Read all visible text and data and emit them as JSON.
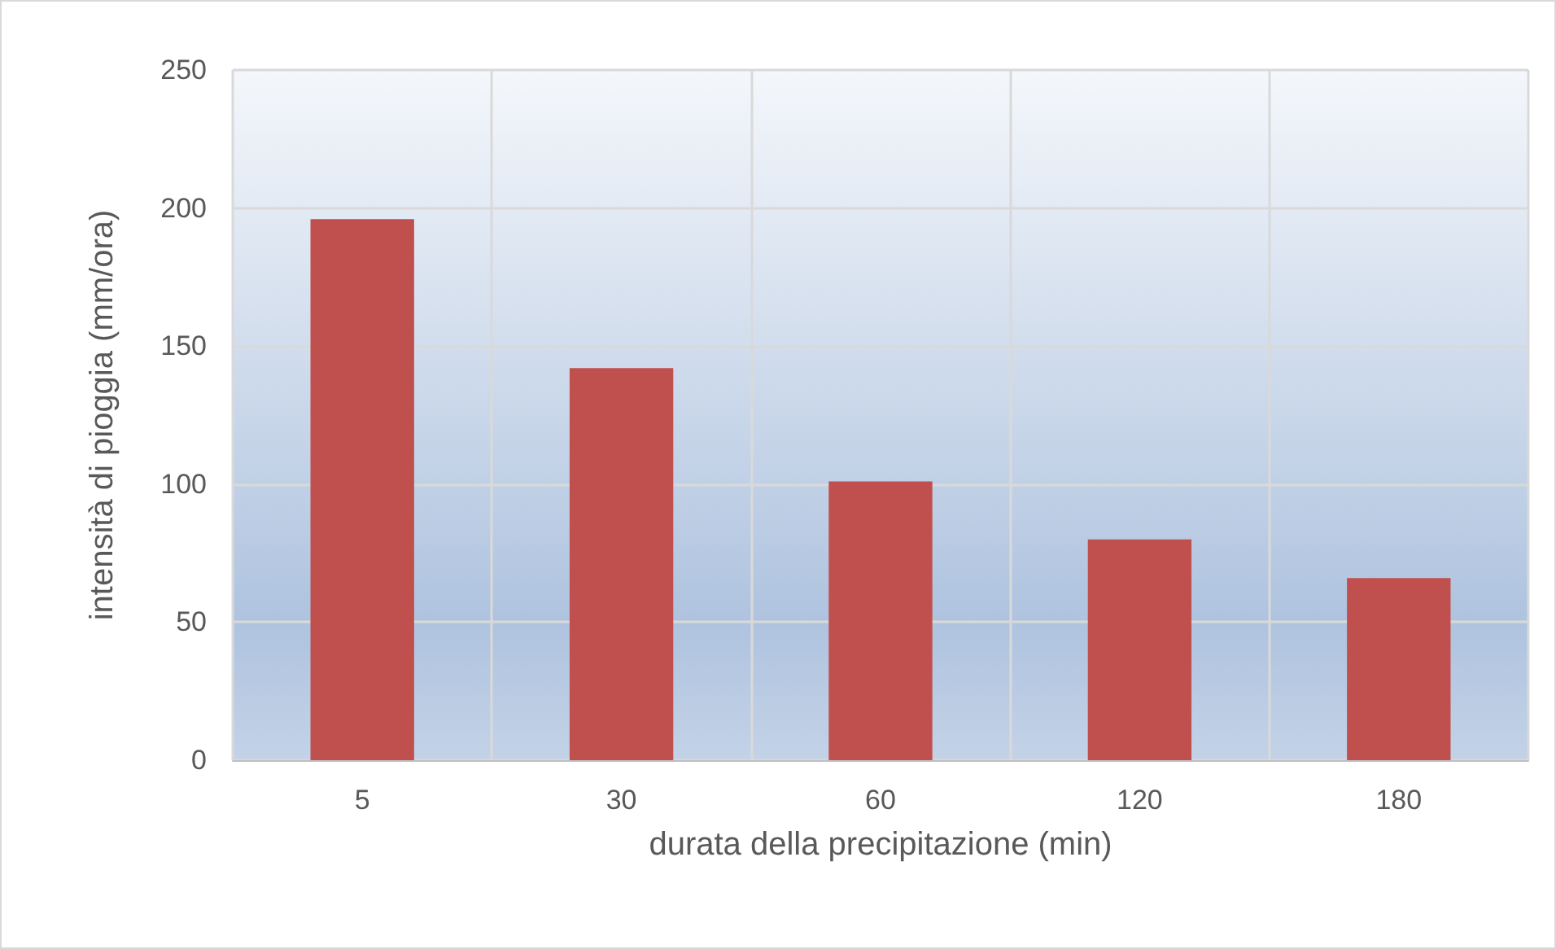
{
  "chart_data": {
    "type": "bar",
    "xlabel": "durata della precipitazione (min)",
    "ylabel": "intensità di pioggia (mm/ora)",
    "categories": [
      "5",
      "30",
      "60",
      "120",
      "180"
    ],
    "values": [
      196,
      142,
      101,
      80,
      66
    ],
    "color": "#c0504d",
    "ylim": [
      0,
      250
    ],
    "yticks": [
      0,
      50,
      100,
      150,
      200,
      250
    ],
    "grid": true
  }
}
